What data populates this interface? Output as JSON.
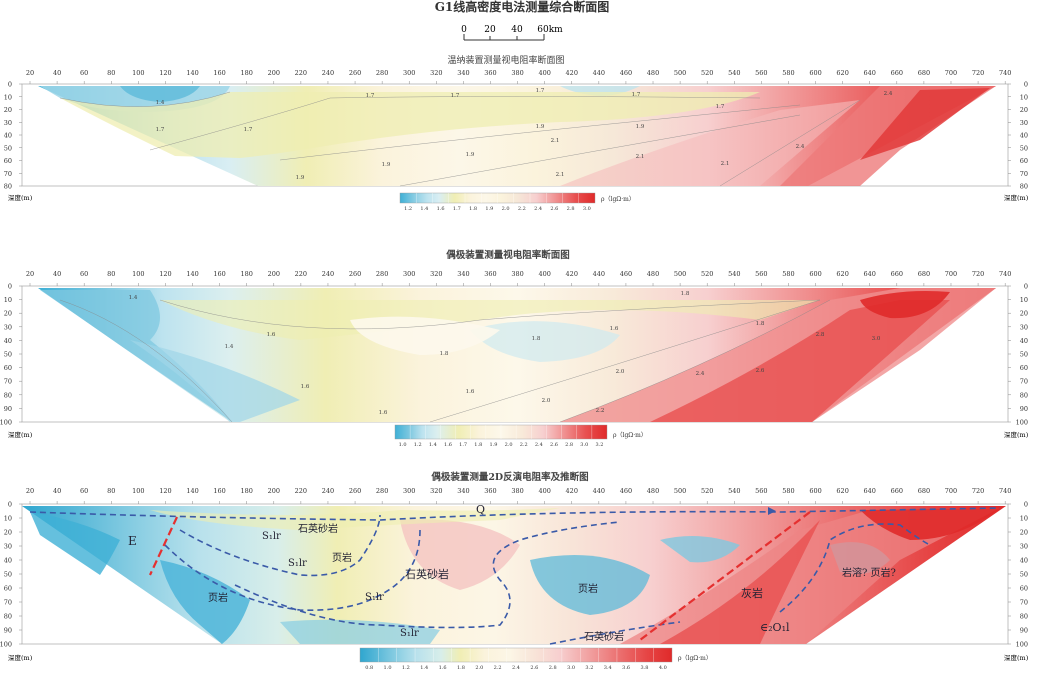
{
  "main_title": "G1线高密度电法测量综合断面图",
  "scale_bar": {
    "ticks": [
      "0",
      "20",
      "40",
      "60km"
    ]
  },
  "x_ticks": [
    20,
    40,
    60,
    80,
    100,
    120,
    140,
    160,
    180,
    200,
    220,
    240,
    260,
    280,
    300,
    320,
    340,
    360,
    380,
    400,
    420,
    440,
    460,
    480,
    500,
    520,
    540,
    560,
    580,
    600,
    620,
    640,
    660,
    680,
    700,
    720,
    740
  ],
  "depth_label": "深度(m)",
  "legend_unit": "ρ（lgΩ·m）",
  "panels": [
    {
      "title": "温纳装置测量视电阻率断面图",
      "depth_ticks": [
        0,
        10,
        20,
        30,
        40,
        50,
        60,
        70,
        80
      ],
      "legend_values": [
        "1.2",
        "1.4",
        "1.6",
        "1.7",
        "1.8",
        "1.9",
        "2.0",
        "2.2",
        "2.4",
        "2.6",
        "2.8",
        "3.0"
      ],
      "contour_labels": [
        "1.4",
        "1.7",
        "1.7",
        "1.7",
        "1.7",
        "1.7",
        "1.7",
        "1.7",
        "1.9",
        "1.9",
        "1.9",
        "1.9",
        "2.1",
        "2.1",
        "2.1",
        "2.1",
        "2.4",
        "2.4",
        "1.9"
      ]
    },
    {
      "title": "偶极装置测量视电阻率断面图",
      "depth_ticks": [
        0,
        10,
        20,
        30,
        40,
        50,
        60,
        70,
        80,
        90,
        100
      ],
      "legend_values": [
        "1.0",
        "1.2",
        "1.4",
        "1.6",
        "1.7",
        "1.8",
        "1.9",
        "2.0",
        "2.2",
        "2.4",
        "2.6",
        "2.8",
        "3.0",
        "3.2"
      ],
      "contour_labels": [
        "1.4",
        "1.4",
        "1.6",
        "1.6",
        "1.6",
        "1.6",
        "1.6",
        "1.8",
        "1.8",
        "1.8",
        "1.8",
        "2.0",
        "2.0",
        "2.2",
        "2.4",
        "2.6",
        "2.8",
        "3.0"
      ]
    },
    {
      "title": "偶极装置测量2D反演电阻率及推断图",
      "depth_ticks": [
        0,
        10,
        20,
        30,
        40,
        50,
        60,
        70,
        80,
        90,
        100
      ],
      "legend_values": [
        "0.8",
        "1.0",
        "1.2",
        "1.4",
        "1.6",
        "1.8",
        "2.0",
        "2.2",
        "2.4",
        "2.6",
        "2.8",
        "3.0",
        "3.2",
        "3.4",
        "3.6",
        "3.8",
        "4.0"
      ],
      "geo_labels": {
        "q": "Q",
        "e": "E",
        "s1lr_1": "S₁lr",
        "quartz_top": "石英砂岩",
        "s1lr_2": "S₁lr",
        "shale_1": "页岩",
        "quartz_mid": "石英砂岩",
        "shale_left": "页岩",
        "s1lr_3": "S₁lr",
        "shale_2": "页岩",
        "s1lr_4": "S₁lr",
        "quartz_bottom": "石英砂岩",
        "limestone": "灰岩",
        "karst": "岩溶? 页岩?",
        "cambrian": "∈₂O₁l"
      }
    }
  ],
  "colors": {
    "blue_dark": "#3fb0d6",
    "blue_light": "#bde3ef",
    "yellow": "#f0eeb4",
    "cream": "#fbf3dc",
    "pink": "#f7cfcf",
    "red": "#e85050",
    "red_dark": "#e02a2a",
    "fault": "#e53030",
    "boundary": "#3a5aa8"
  }
}
